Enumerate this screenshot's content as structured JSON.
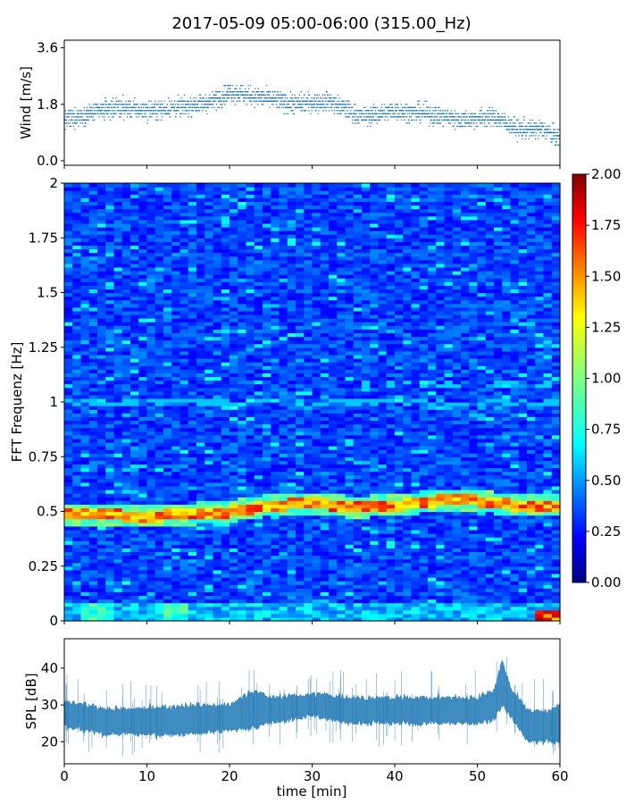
{
  "title": "2017-05-09 05:00-06:00 (315.00_Hz)",
  "chart_data": [
    {
      "type": "scatter",
      "ylabel": "Wind [m/s]",
      "xlim": [
        0,
        60
      ],
      "ylim": [
        0,
        3.7
      ],
      "yticks": [
        "0.0",
        "1.8",
        "3.6"
      ],
      "marker_color": "#1f77b4",
      "anchors": [
        {
          "t": 0,
          "y": 1.3
        },
        {
          "t": 3,
          "y": 1.5
        },
        {
          "t": 6,
          "y": 1.7
        },
        {
          "t": 10,
          "y": 1.6
        },
        {
          "t": 14,
          "y": 1.7
        },
        {
          "t": 18,
          "y": 1.9
        },
        {
          "t": 20,
          "y": 2.2
        },
        {
          "t": 24,
          "y": 2.0
        },
        {
          "t": 28,
          "y": 1.8
        },
        {
          "t": 32,
          "y": 1.9
        },
        {
          "t": 36,
          "y": 1.4
        },
        {
          "t": 40,
          "y": 1.6
        },
        {
          "t": 44,
          "y": 1.5
        },
        {
          "t": 48,
          "y": 1.3
        },
        {
          "t": 52,
          "y": 1.4
        },
        {
          "t": 55,
          "y": 1.0
        },
        {
          "t": 58,
          "y": 1.0
        },
        {
          "t": 60,
          "y": 0.7
        }
      ]
    },
    {
      "type": "heatmap",
      "ylabel": "FFT Frequenz [Hz]",
      "xlim": [
        0,
        60
      ],
      "ylim": [
        0,
        2
      ],
      "yticks": [
        "0",
        "0.25",
        "0.5",
        "0.75",
        "1",
        "1.25",
        "1.5",
        "1.75",
        "2"
      ],
      "colorbar": {
        "range": [
          0,
          2
        ],
        "ticks": [
          "0.00",
          "0.25",
          "0.50",
          "0.75",
          "1.00",
          "1.25",
          "1.50",
          "1.75",
          "2.00"
        ],
        "colormap": "jet"
      },
      "dominant_band": [
        {
          "t": 0,
          "f": 0.49
        },
        {
          "t": 10,
          "f": 0.48
        },
        {
          "t": 20,
          "f": 0.5
        },
        {
          "t": 25,
          "f": 0.53
        },
        {
          "t": 30,
          "f": 0.54
        },
        {
          "t": 35,
          "f": 0.52
        },
        {
          "t": 40,
          "f": 0.53
        },
        {
          "t": 45,
          "f": 0.55
        },
        {
          "t": 50,
          "f": 0.55
        },
        {
          "t": 55,
          "f": 0.53
        },
        {
          "t": 60,
          "f": 0.53
        }
      ]
    },
    {
      "type": "area",
      "ylabel": "SPL [dB]",
      "xlabel": "time [min]",
      "xlim": [
        0,
        60
      ],
      "ylim": [
        14,
        48
      ],
      "yticks": [
        "20",
        "30",
        "40"
      ],
      "xticks": [
        "0",
        "10",
        "20",
        "30",
        "40",
        "50",
        "60"
      ],
      "color": "#1f77b4",
      "series": [
        {
          "t": 0,
          "lo": 24,
          "hi": 31
        },
        {
          "t": 5,
          "lo": 22,
          "hi": 29
        },
        {
          "t": 10,
          "lo": 22,
          "hi": 29
        },
        {
          "t": 15,
          "lo": 22,
          "hi": 30
        },
        {
          "t": 20,
          "lo": 23,
          "hi": 30
        },
        {
          "t": 23,
          "lo": 24,
          "hi": 34
        },
        {
          "t": 25,
          "lo": 25,
          "hi": 32
        },
        {
          "t": 30,
          "lo": 27,
          "hi": 33
        },
        {
          "t": 35,
          "lo": 25,
          "hi": 32
        },
        {
          "t": 40,
          "lo": 25,
          "hi": 32
        },
        {
          "t": 45,
          "lo": 25,
          "hi": 32
        },
        {
          "t": 50,
          "lo": 25,
          "hi": 32
        },
        {
          "t": 52,
          "lo": 26,
          "hi": 34
        },
        {
          "t": 53,
          "lo": 30,
          "hi": 42
        },
        {
          "t": 54,
          "lo": 27,
          "hi": 35
        },
        {
          "t": 56,
          "lo": 20,
          "hi": 29
        },
        {
          "t": 58,
          "lo": 20,
          "hi": 28
        },
        {
          "t": 60,
          "lo": 20,
          "hi": 30
        }
      ]
    }
  ]
}
